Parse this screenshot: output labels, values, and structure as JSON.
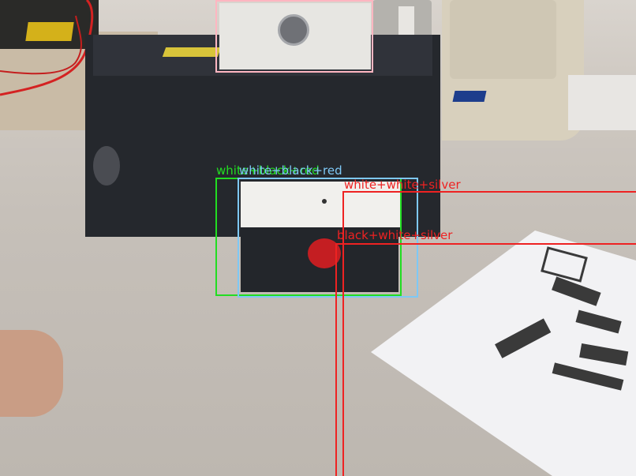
{
  "image": {
    "description_objects": [
      "black cardboard box",
      "white box with camera",
      "white and black box with red button",
      "printed paper with pattern",
      "hand",
      "desk phone",
      "speaker",
      "red cable"
    ]
  },
  "detections": [
    {
      "label": "",
      "color": "#ffb6c1"
    },
    {
      "label": "white+black+red",
      "color": "#22dd22"
    },
    {
      "label": "white+black+red",
      "color": "#7ec8f5"
    },
    {
      "label": "white+white+silver",
      "color": "#ee2222"
    },
    {
      "label": "black+white+silver",
      "color": "#ee2222"
    }
  ],
  "colors": {
    "pink": "#ffb6c1",
    "green": "#22dd22",
    "blue": "#7ec8f5",
    "red": "#ee2222"
  }
}
